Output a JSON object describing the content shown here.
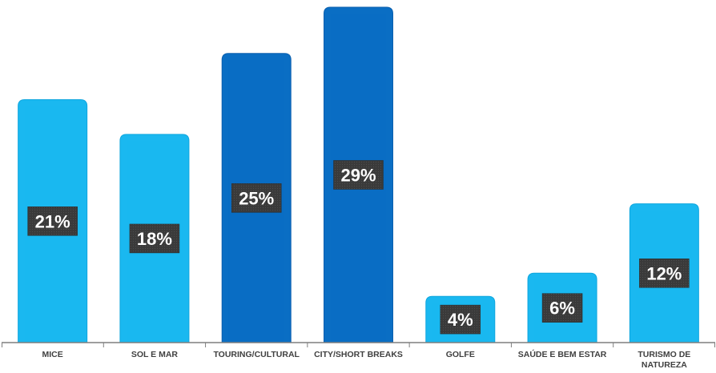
{
  "chart_data": {
    "type": "bar",
    "categories": [
      [
        "MICE"
      ],
      [
        "SOL E MAR"
      ],
      [
        "TOURING/CULTURAL"
      ],
      [
        "CITY/SHORT BREAKS"
      ],
      [
        "GOLFE"
      ],
      [
        "SAÚDE E BEM ESTAR"
      ],
      [
        "TURISMO DE",
        "NATUREZA"
      ]
    ],
    "values": [
      21,
      18,
      25,
      29,
      4,
      6,
      12
    ],
    "data_labels": [
      "21%",
      "18%",
      "25%",
      "29%",
      "4%",
      "6%",
      "12%"
    ],
    "unit": "%",
    "ylim": [
      0,
      30
    ],
    "grid": false,
    "legend": "none",
    "title": "",
    "xlabel": "",
    "ylabel": "",
    "colors": {
      "light_bar": "#1ab8f0",
      "light_bar_edge": "#0fa6de",
      "dark_bar": "#0a6ec4",
      "dark_bar_edge": "#0a5fae",
      "label_box": "#3a3a3a",
      "axis": "#7f7f7f"
    },
    "bar_color_keys": [
      "light",
      "light",
      "dark",
      "dark",
      "light",
      "light",
      "light"
    ]
  }
}
